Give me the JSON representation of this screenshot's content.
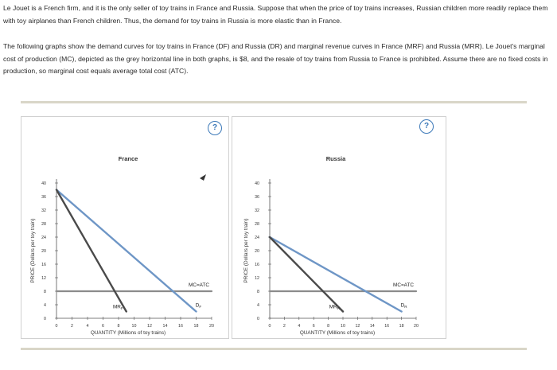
{
  "intro": {
    "paragraph1": "Le Jouet is a French firm, and it is the only seller of toy trains in France and Russia. Suppose that when the price of toy trains increases, Russian children more readily replace them with toy airplanes than French children. Thus, the demand for toy trains in Russia is more elastic than in France.",
    "paragraph2": "The following graphs show the demand curves for toy trains in France (DF) and Russia (DR) and marginal revenue curves in France (MRF) and Russia (MRR). Le Jouet's marginal cost of production (MC), depicted as the grey horizontal line in both graphs, is $8, and the resale of toy trains from Russia to France is prohibited. Assume there are no fixed costs in production, so marginal cost equals average total cost (ATC)."
  },
  "help_label": "?",
  "chart_data": [
    {
      "type": "line",
      "title": "France",
      "xlabel": "QUANTITY (Millions of toy trains)",
      "ylabel": "PRICE (Dollars per toy train)",
      "xlim": [
        0,
        20
      ],
      "ylim": [
        0,
        40
      ],
      "xticks": [
        "0",
        "2",
        "4",
        "6",
        "8",
        "10",
        "12",
        "14",
        "16",
        "18",
        "20"
      ],
      "yticks": [
        "0",
        "4",
        "8",
        "12",
        "16",
        "20",
        "24",
        "28",
        "32",
        "36",
        "40"
      ],
      "series": [
        {
          "name": "DF",
          "label": "D",
          "sub": "F",
          "color": "#6e96c6",
          "points": [
            [
              0,
              38
            ],
            [
              18,
              2
            ]
          ]
        },
        {
          "name": "MRF",
          "label": "MR",
          "sub": "F",
          "color": "#4a4a4a",
          "points": [
            [
              0,
              38
            ],
            [
              9,
              2
            ]
          ]
        },
        {
          "name": "MC=ATC",
          "label": "MC=ATC",
          "sub": "",
          "color": "#8c8c8c",
          "points": [
            [
              0,
              8
            ],
            [
              20,
              8
            ]
          ]
        }
      ]
    },
    {
      "type": "line",
      "title": "Russia",
      "xlabel": "QUANTITY (Millions of toy trains)",
      "ylabel": "PRICE (Dollars per toy train)",
      "xlim": [
        0,
        20
      ],
      "ylim": [
        0,
        40
      ],
      "xticks": [
        "0",
        "2",
        "4",
        "6",
        "8",
        "10",
        "12",
        "14",
        "16",
        "18",
        "20"
      ],
      "yticks": [
        "0",
        "4",
        "8",
        "12",
        "16",
        "20",
        "24",
        "28",
        "32",
        "36",
        "40"
      ],
      "series": [
        {
          "name": "DR",
          "label": "D",
          "sub": "R",
          "color": "#6e96c6",
          "points": [
            [
              0,
              24
            ],
            [
              18,
              2
            ]
          ]
        },
        {
          "name": "MRR",
          "label": "MR",
          "sub": "R",
          "color": "#4a4a4a",
          "points": [
            [
              0,
              24
            ],
            [
              10,
              2
            ]
          ]
        },
        {
          "name": "MC=ATC",
          "label": "MC=ATC",
          "sub": "",
          "color": "#8c8c8c",
          "points": [
            [
              0,
              8
            ],
            [
              20,
              8
            ]
          ]
        }
      ]
    }
  ]
}
